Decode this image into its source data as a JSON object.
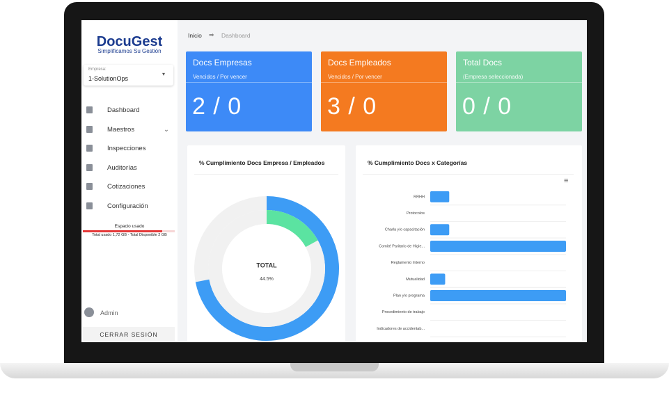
{
  "sidebar": {
    "logo": "DocuGest",
    "tagline": "Simplificamos Su Gestión",
    "company_label": "Empresa:",
    "company": "1-SolutionOps",
    "menu": [
      "Dashboard",
      "Maestros",
      "Inspecciones",
      "Auditorías",
      "Cotizaciones",
      "Configuración"
    ],
    "storage_title": "Espacio usado",
    "storage_detail": "Total usado 1,72 GB - Total Disponible 2 GB",
    "storage_used": 1.72,
    "storage_total": 2,
    "user": "Admin",
    "logout": "CERRAR SESIÓN"
  },
  "breadcrumb": [
    "Inicio",
    "Dashboard"
  ],
  "cards": [
    {
      "title": "Docs Empresas",
      "subtitle": "Vencidos / Por vencer",
      "value": "2 / 0",
      "color": "#3d8af7"
    },
    {
      "title": "Docs Empleados",
      "subtitle": "Vencidos / Por vencer",
      "value": "3 / 0",
      "color": "#f47a20"
    },
    {
      "title": "Total Docs",
      "subtitle": "(Empresa seleccionada)",
      "value": "0 / 0",
      "color": "#7dd3a3"
    }
  ],
  "chart_data": [
    {
      "type": "donut",
      "title": "% Cumplimiento Docs Empresa / Empleados",
      "values": [
        72,
        17
      ],
      "colors": [
        "#3d9cf5",
        "#5be3a1"
      ],
      "track_color": "#f1f1f1",
      "center_label": "TOTAL",
      "center_value": "44.5%"
    },
    {
      "type": "bar",
      "orientation": "horizontal",
      "title": "% Cumplimiento Docs x Categorías",
      "categories": [
        "RRHH",
        "Protocolos",
        "Charla y/o capacitación",
        "Comité Paritario de Higie...",
        "Reglamento Interno",
        "Mutualidad",
        "Plan y/o programa",
        "Procedimiento de trabajo",
        "Indicadores de accidentab..."
      ],
      "values": [
        14,
        0,
        14,
        100,
        0,
        11,
        100,
        0,
        0
      ],
      "color": "#3d9cf5",
      "xlim": [
        0,
        100
      ],
      "grid": true
    }
  ]
}
